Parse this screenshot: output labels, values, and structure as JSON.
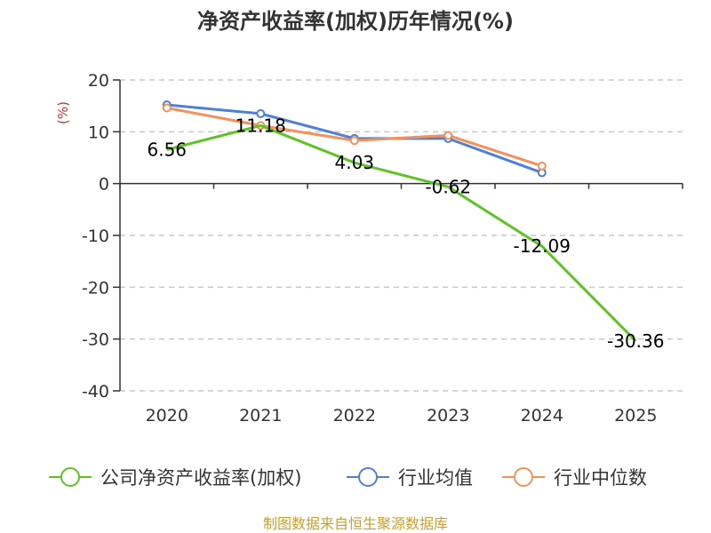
{
  "chart_data": {
    "type": "line",
    "title": "净资产收益率(加权)历年情况(%)",
    "ylabel": "(%)",
    "xlabel": "",
    "categories": [
      "2020",
      "2021",
      "2022",
      "2023",
      "2024",
      "2025"
    ],
    "ylim": [
      -40,
      20
    ],
    "yticks": [
      20,
      10,
      0,
      -10,
      -20,
      -30,
      -40
    ],
    "ytick_labels": [
      "20",
      "10",
      "0",
      "-10",
      "-20",
      "-30",
      "-40"
    ],
    "grid": true,
    "series": [
      {
        "name": "公司净资产收益率(加权)",
        "color": "#5cc424",
        "values": [
          6.56,
          11.18,
          4.03,
          -0.62,
          -12.09,
          -30.36
        ],
        "labels": [
          "6.56",
          "11.18",
          "4.03",
          "-0.62",
          "-12.09",
          "-30.36"
        ]
      },
      {
        "name": "行业均值",
        "color": "#4e7fd9",
        "values": [
          15.2,
          13.5,
          8.7,
          8.7,
          2.1,
          null
        ]
      },
      {
        "name": "行业中位数",
        "color": "#f5905a",
        "values": [
          14.6,
          11.2,
          8.3,
          9.3,
          3.4,
          null
        ]
      }
    ],
    "legend_position": "bottom",
    "source": "制图数据来自恒生聚源数据库"
  },
  "colors": {
    "title": "#333333",
    "ylabel": "#d03030",
    "source": "#c8a030",
    "axis": "#333333",
    "grid": "#c8c8c8"
  }
}
